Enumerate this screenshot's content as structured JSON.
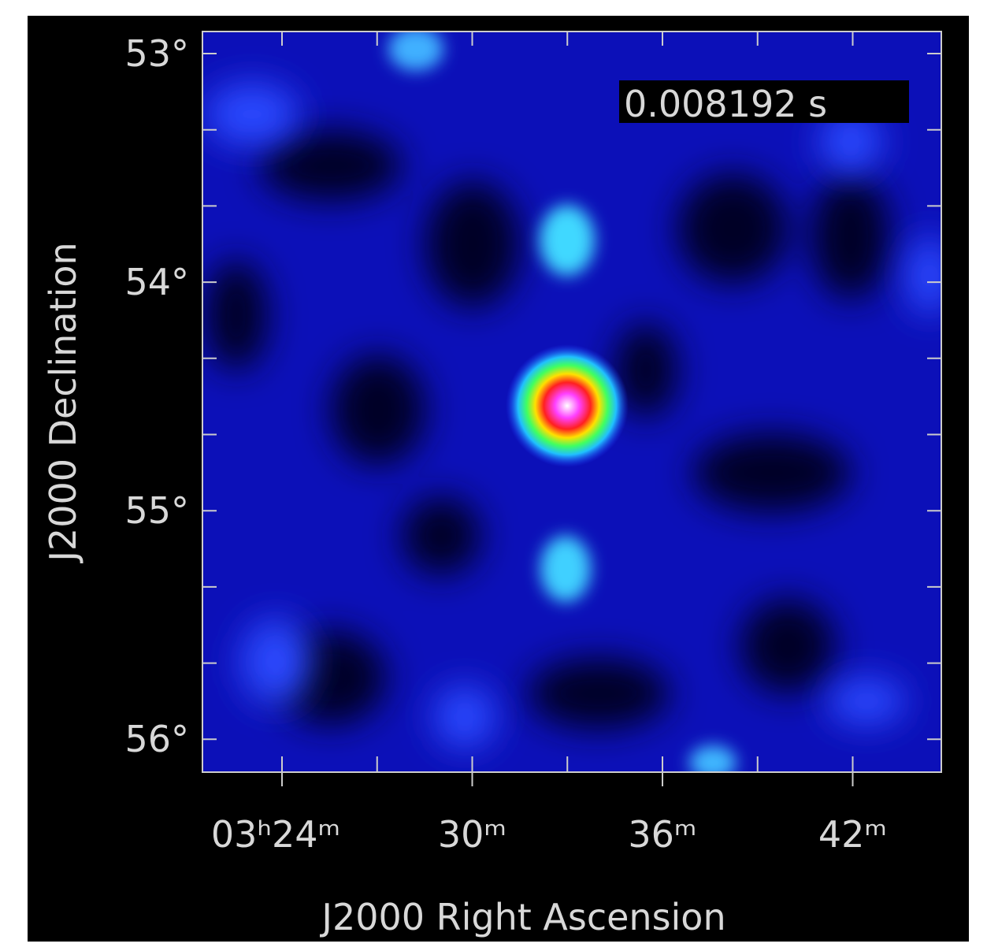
{
  "image": {
    "timestamp": "0.008192 s",
    "x_axis": {
      "label": "J2000 Right Ascension",
      "ticks": [
        "03ʰ24ᵐ",
        "30ᵐ",
        "36ᵐ",
        "42ᵐ"
      ]
    },
    "y_axis": {
      "label": "J2000 Declination",
      "ticks": [
        "53°",
        "54°",
        "55°",
        "56°"
      ]
    }
  }
}
